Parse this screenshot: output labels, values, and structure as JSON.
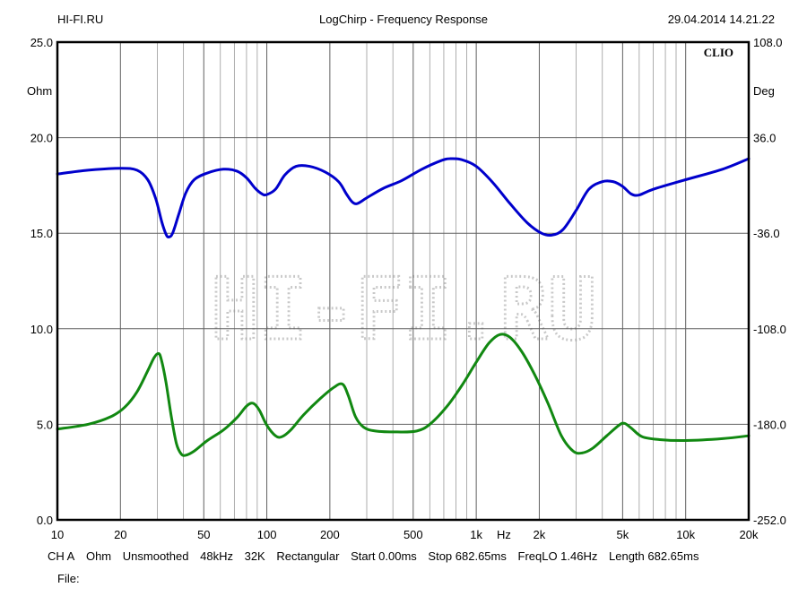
{
  "header": {
    "left": "HI-FI.RU",
    "center": "LogChirp - Frequency Response",
    "right": "29.04.2014 14.21.22"
  },
  "chart_data": {
    "type": "line",
    "title": "LogChirp - Frequency Response",
    "xscale": "log",
    "xlim": [
      10,
      20000
    ],
    "xlabel": "Hz",
    "x_ticks": [
      {
        "v": 10,
        "l": "10"
      },
      {
        "v": 20,
        "l": "20"
      },
      {
        "v": 50,
        "l": "50"
      },
      {
        "v": 100,
        "l": "100"
      },
      {
        "v": 200,
        "l": "200"
      },
      {
        "v": 500,
        "l": "500"
      },
      {
        "v": 1000,
        "l": "1k"
      },
      {
        "v": 2000,
        "l": "2k"
      },
      {
        "v": 5000,
        "l": "5k"
      },
      {
        "v": 10000,
        "l": "10k"
      },
      {
        "v": 20000,
        "l": "20k"
      }
    ],
    "y_left": {
      "unit": "Ohm",
      "lim": [
        0,
        25
      ],
      "ticks": [
        "0.0",
        "5.0",
        "10.0",
        "15.0",
        "20.0",
        "25.0"
      ]
    },
    "y_right": {
      "unit": "Deg",
      "lim": [
        -252,
        108
      ],
      "ticks": [
        "-252.0",
        "-180.0",
        "-108.0",
        "-36.0",
        "36.0",
        "108.0"
      ]
    },
    "grid": true,
    "brand_label": "CLIO",
    "watermark": "HI-FI.RU",
    "series": [
      {
        "color": "#0000cc",
        "axis": "left",
        "points": [
          [
            10,
            18.1
          ],
          [
            14,
            18.3
          ],
          [
            20,
            18.4
          ],
          [
            24,
            18.3
          ],
          [
            27,
            17.8
          ],
          [
            29.5,
            16.8
          ],
          [
            31.5,
            15.6
          ],
          [
            33,
            14.95
          ],
          [
            34,
            14.8
          ],
          [
            35.5,
            15.0
          ],
          [
            38,
            16.0
          ],
          [
            41,
            17.1
          ],
          [
            45,
            17.8
          ],
          [
            52,
            18.15
          ],
          [
            62,
            18.35
          ],
          [
            72,
            18.25
          ],
          [
            80,
            17.9
          ],
          [
            88,
            17.35
          ],
          [
            95,
            17.05
          ],
          [
            100,
            17.02
          ],
          [
            110,
            17.3
          ],
          [
            122,
            18.05
          ],
          [
            138,
            18.5
          ],
          [
            160,
            18.5
          ],
          [
            190,
            18.2
          ],
          [
            220,
            17.7
          ],
          [
            240,
            17.05
          ],
          [
            255,
            16.65
          ],
          [
            270,
            16.55
          ],
          [
            300,
            16.85
          ],
          [
            360,
            17.35
          ],
          [
            440,
            17.75
          ],
          [
            550,
            18.35
          ],
          [
            680,
            18.8
          ],
          [
            750,
            18.9
          ],
          [
            850,
            18.85
          ],
          [
            1000,
            18.5
          ],
          [
            1200,
            17.65
          ],
          [
            1450,
            16.55
          ],
          [
            1750,
            15.55
          ],
          [
            2050,
            15.0
          ],
          [
            2300,
            14.9
          ],
          [
            2600,
            15.2
          ],
          [
            3000,
            16.2
          ],
          [
            3450,
            17.3
          ],
          [
            4000,
            17.7
          ],
          [
            4500,
            17.7
          ],
          [
            5000,
            17.45
          ],
          [
            5500,
            17.05
          ],
          [
            6000,
            17.0
          ],
          [
            7000,
            17.3
          ],
          [
            10000,
            17.8
          ],
          [
            15000,
            18.35
          ],
          [
            20000,
            18.9
          ]
        ]
      },
      {
        "color": "#118811",
        "axis": "left",
        "points": [
          [
            10,
            4.75
          ],
          [
            14,
            5.0
          ],
          [
            18,
            5.4
          ],
          [
            21,
            5.9
          ],
          [
            24,
            6.7
          ],
          [
            27,
            7.8
          ],
          [
            29,
            8.5
          ],
          [
            30.5,
            8.7
          ],
          [
            31.5,
            8.3
          ],
          [
            33,
            7.2
          ],
          [
            35,
            5.4
          ],
          [
            37,
            4.0
          ],
          [
            39,
            3.45
          ],
          [
            41,
            3.38
          ],
          [
            45,
            3.6
          ],
          [
            52,
            4.15
          ],
          [
            62,
            4.7
          ],
          [
            72,
            5.35
          ],
          [
            80,
            5.95
          ],
          [
            86,
            6.1
          ],
          [
            92,
            5.75
          ],
          [
            100,
            4.95
          ],
          [
            110,
            4.4
          ],
          [
            118,
            4.35
          ],
          [
            130,
            4.7
          ],
          [
            150,
            5.5
          ],
          [
            180,
            6.35
          ],
          [
            210,
            6.95
          ],
          [
            230,
            7.1
          ],
          [
            245,
            6.5
          ],
          [
            265,
            5.4
          ],
          [
            290,
            4.85
          ],
          [
            330,
            4.65
          ],
          [
            420,
            4.6
          ],
          [
            520,
            4.65
          ],
          [
            600,
            5.0
          ],
          [
            720,
            5.9
          ],
          [
            850,
            7.0
          ],
          [
            1000,
            8.25
          ],
          [
            1150,
            9.25
          ],
          [
            1300,
            9.7
          ],
          [
            1450,
            9.55
          ],
          [
            1650,
            8.8
          ],
          [
            1900,
            7.6
          ],
          [
            2200,
            6.1
          ],
          [
            2550,
            4.4
          ],
          [
            2900,
            3.6
          ],
          [
            3200,
            3.5
          ],
          [
            3600,
            3.75
          ],
          [
            4200,
            4.4
          ],
          [
            4800,
            4.95
          ],
          [
            5100,
            5.05
          ],
          [
            5500,
            4.8
          ],
          [
            6200,
            4.35
          ],
          [
            7500,
            4.2
          ],
          [
            10000,
            4.15
          ],
          [
            15000,
            4.25
          ],
          [
            20000,
            4.4
          ]
        ]
      }
    ]
  },
  "status": {
    "channel": "CH A",
    "unit": "Ohm",
    "smoothing": "Unsmoothed",
    "rate": "48kHz",
    "size": "32K",
    "window": "Rectangular",
    "start": "Start 0.00ms",
    "stop": "Stop 682.65ms",
    "freqlo": "FreqLO 1.46Hz",
    "length": "Length 682.65ms"
  },
  "file_label": "File:"
}
